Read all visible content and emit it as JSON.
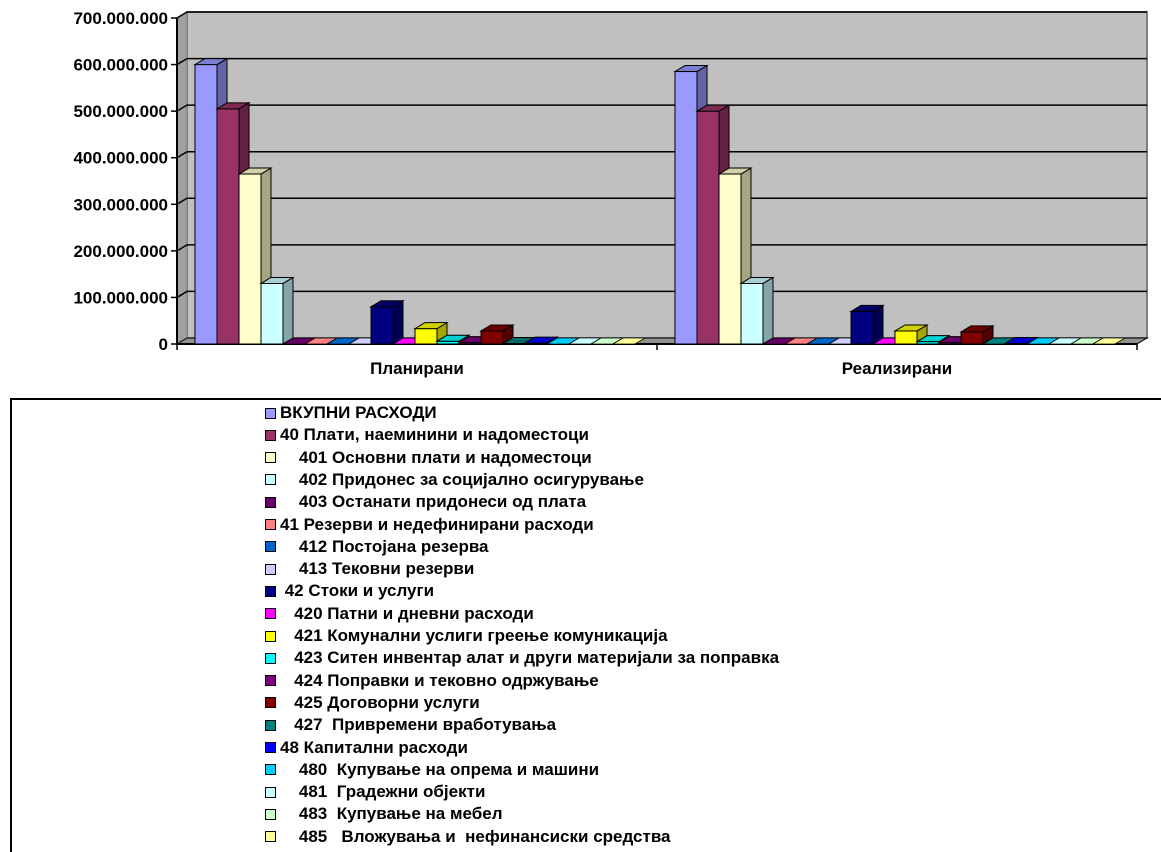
{
  "chart_data": {
    "type": "bar",
    "style": "3d-clustered-column",
    "categories": [
      "Планирани",
      "Реализирани"
    ],
    "ylim": [
      0,
      700000000
    ],
    "y_ticks": [
      "0",
      "100.000.000",
      "200.000.000",
      "300.000.000",
      "400.000.000",
      "500.000.000",
      "600.000.000",
      "700.000.000"
    ],
    "grid": true,
    "legend_position": "bottom",
    "series": [
      {
        "name": "ВКУПНИ РАСХОДИ",
        "color": "#9999ff",
        "values": [
          600000000,
          585000000
        ]
      },
      {
        "name": "40 Плати, наеминини и надоместоци",
        "color": "#993366",
        "values": [
          505000000,
          500000000
        ]
      },
      {
        "name": "    401 Основни плати и надоместоци",
        "color": "#ffffcc",
        "values": [
          365000000,
          365000000
        ]
      },
      {
        "name": "    402 Придонес за социјално осигурување",
        "color": "#ccffff",
        "values": [
          130000000,
          130000000
        ]
      },
      {
        "name": "    403 Останати придонеси од плата",
        "color": "#660066",
        "values": [
          0,
          0
        ]
      },
      {
        "name": "41 Резерви и недефинирани расходи",
        "color": "#ff8080",
        "values": [
          0,
          0
        ]
      },
      {
        "name": "    412 Постојана резерва",
        "color": "#0066cc",
        "values": [
          0,
          0
        ]
      },
      {
        "name": "    413 Тековни резерви",
        "color": "#ccccff",
        "values": [
          0,
          0
        ]
      },
      {
        "name": " 42 Стоки и услуги",
        "color": "#000080",
        "values": [
          80000000,
          70000000
        ]
      },
      {
        "name": "   420 Патни и дневни расходи",
        "color": "#ff00ff",
        "values": [
          0,
          0
        ]
      },
      {
        "name": "   421 Комунални услиги греење комуникација",
        "color": "#ffff00",
        "values": [
          33000000,
          28000000
        ]
      },
      {
        "name": "   423 Ситен инвентар алат и други материјали за поправка",
        "color": "#00ffff",
        "values": [
          6000000,
          5000000
        ]
      },
      {
        "name": "   424 Поправки и тековно одржување",
        "color": "#800080",
        "values": [
          3000000,
          3000000
        ]
      },
      {
        "name": "   425 Договорни услуги",
        "color": "#800000",
        "values": [
          28000000,
          26000000
        ]
      },
      {
        "name": "   427  Привремени вработувања",
        "color": "#008080",
        "values": [
          1000000,
          0
        ]
      },
      {
        "name": "48 Капитални расходи",
        "color": "#0000ff",
        "values": [
          2000000,
          1000000
        ]
      },
      {
        "name": "    480  Купување на опрема и машини",
        "color": "#00ccff",
        "values": [
          0,
          0
        ]
      },
      {
        "name": "    481  Градежни објекти",
        "color": "#ccffff",
        "values": [
          0,
          0
        ]
      },
      {
        "name": "    483  Купување на мебел",
        "color": "#ccffcc",
        "values": [
          0,
          0
        ]
      },
      {
        "name": "    485   Вложувања и  нефинансиски средства",
        "color": "#ffff99",
        "values": [
          0,
          0
        ]
      }
    ]
  }
}
